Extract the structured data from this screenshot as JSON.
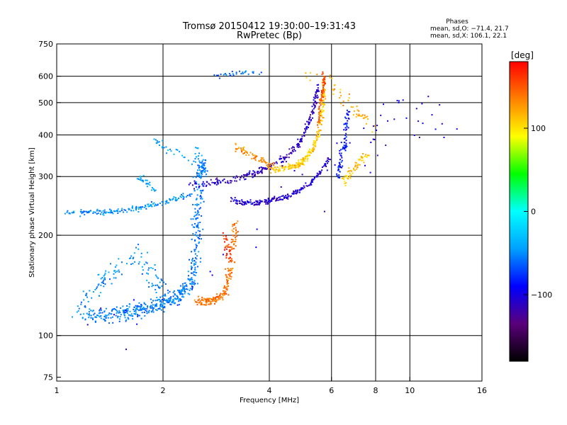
{
  "chart_data": {
    "type": "scatter",
    "title": "Tromsø 20150412 19:30:00–19:31:43",
    "subtitle": "RwPretec (Bp)",
    "annotation": {
      "heading": "Phases",
      "line1": "mean, sd,O: −71.4, 21.7",
      "line2": "mean, sd,X: 106.1, 22.1"
    },
    "xlabel": "Frequency [MHz]",
    "ylabel": "Stationary phase Virtual Height [km]",
    "xscale": "log",
    "yscale": "log",
    "xlim": [
      1,
      16
    ],
    "ylim": [
      73,
      750
    ],
    "xticks": [
      1,
      2,
      4,
      6,
      8,
      10,
      16
    ],
    "xtick_labels": [
      "1",
      "2",
      "4",
      "6",
      "8",
      "10",
      "16"
    ],
    "yticks": [
      75,
      100,
      200,
      300,
      400,
      500,
      600,
      750
    ],
    "ytick_labels": [
      "75",
      "100",
      "200",
      "300",
      "400",
      "500",
      "600",
      "750"
    ],
    "grid": true,
    "colorbar": {
      "label": "[deg]",
      "range": [
        -180,
        180
      ],
      "ticks": [
        100,
        0,
        -100
      ],
      "tick_labels": [
        "100",
        "0",
        "−100"
      ],
      "colors": [
        "#000000",
        "#5a007a",
        "#0000ff",
        "#00a0ff",
        "#00ffff",
        "#00ff00",
        "#ffff00",
        "#ff8000",
        "#ff0000"
      ]
    },
    "series": [
      {
        "points": [
          [
            1.2,
            117
          ],
          [
            1.3,
            116
          ],
          [
            1.4,
            115
          ],
          [
            1.5,
            116
          ],
          [
            1.6,
            117
          ],
          [
            1.7,
            119
          ],
          [
            1.8,
            121
          ],
          [
            1.9,
            123
          ],
          [
            2.0,
            125
          ],
          [
            2.1,
            128
          ],
          [
            2.2,
            131
          ],
          [
            2.3,
            136
          ],
          [
            2.4,
            145
          ],
          [
            2.45,
            160
          ],
          [
            2.5,
            190
          ],
          [
            2.5,
            230
          ],
          [
            2.55,
            270
          ],
          [
            2.6,
            330
          ],
          [
            2.5,
            300
          ]
        ],
        "spread": 0.08,
        "count": 560,
        "phase": -55
      },
      {
        "points": [
          [
            1.15,
            120
          ],
          [
            1.25,
            135
          ],
          [
            1.4,
            150
          ],
          [
            1.55,
            165
          ],
          [
            1.7,
            175
          ],
          [
            1.8,
            160
          ],
          [
            1.9,
            145
          ],
          [
            2.0,
            140
          ]
        ],
        "spread": 0.1,
        "count": 120,
        "phase": -50
      },
      {
        "points": [
          [
            1.05,
            235
          ],
          [
            1.2,
            234
          ],
          [
            1.4,
            235
          ],
          [
            1.6,
            238
          ],
          [
            1.8,
            244
          ],
          [
            2.0,
            250
          ],
          [
            2.2,
            257
          ],
          [
            2.4,
            265
          ]
        ],
        "spread": 0.03,
        "count": 160,
        "phase": -50
      },
      {
        "points": [
          [
            1.7,
            300
          ],
          [
            1.8,
            290
          ],
          [
            1.9,
            270
          ]
        ],
        "spread": 0.03,
        "count": 30,
        "phase": -45
      },
      {
        "points": [
          [
            1.9,
            380
          ],
          [
            2.0,
            370
          ],
          [
            2.4,
            330
          ],
          [
            2.55,
            360
          ]
        ],
        "spread": 0.06,
        "count": 40,
        "phase": -40
      },
      {
        "points": [
          [
            2.5,
            127
          ],
          [
            2.6,
            127
          ],
          [
            2.7,
            127
          ],
          [
            2.8,
            128
          ],
          [
            2.9,
            130
          ],
          [
            3.0,
            135
          ],
          [
            3.05,
            145
          ],
          [
            3.1,
            160
          ],
          [
            3.15,
            180
          ],
          [
            3.2,
            200
          ],
          [
            3.2,
            215
          ]
        ],
        "spread": 0.05,
        "count": 200,
        "phase": 140
      },
      {
        "points": [
          [
            3.0,
            200
          ],
          [
            3.05,
            180
          ],
          [
            3.1,
            170
          ]
        ],
        "spread": 0.05,
        "count": 30,
        "phase": 165
      },
      {
        "points": [
          [
            2.4,
            285
          ],
          [
            2.7,
            285
          ],
          [
            3.0,
            290
          ],
          [
            3.3,
            297
          ],
          [
            3.6,
            305
          ],
          [
            3.9,
            315
          ],
          [
            4.2,
            328
          ],
          [
            4.5,
            345
          ],
          [
            4.8,
            370
          ],
          [
            5.0,
            400
          ],
          [
            5.2,
            440
          ],
          [
            5.4,
            500
          ],
          [
            5.5,
            560
          ]
        ],
        "spread": 0.035,
        "count": 260,
        "phase": -110
      },
      {
        "points": [
          [
            3.1,
            255
          ],
          [
            3.4,
            250
          ],
          [
            3.7,
            250
          ],
          [
            4.0,
            254
          ],
          [
            4.4,
            260
          ],
          [
            4.8,
            270
          ],
          [
            5.2,
            285
          ],
          [
            5.6,
            310
          ],
          [
            5.9,
            340
          ]
        ],
        "spread": 0.03,
        "count": 200,
        "phase": -105
      },
      {
        "points": [
          [
            3.2,
            370
          ],
          [
            3.5,
            350
          ],
          [
            3.8,
            335
          ],
          [
            4.0,
            325
          ],
          [
            4.2,
            320
          ]
        ],
        "spread": 0.04,
        "count": 70,
        "phase": 130
      },
      {
        "points": [
          [
            4.0,
            315
          ],
          [
            4.4,
            318
          ],
          [
            4.8,
            325
          ],
          [
            5.0,
            335
          ],
          [
            5.3,
            360
          ],
          [
            5.5,
            400
          ],
          [
            5.6,
            450
          ],
          [
            5.7,
            520
          ],
          [
            5.7,
            600
          ]
        ],
        "spread": 0.035,
        "count": 240,
        "phase": 110
      },
      {
        "points": [
          [
            5.5,
            430
          ],
          [
            5.6,
            500
          ],
          [
            5.7,
            560
          ],
          [
            5.7,
            620
          ]
        ],
        "spread": 0.03,
        "count": 70,
        "phase": 150
      },
      {
        "points": [
          [
            6.2,
            300
          ],
          [
            6.4,
            330
          ],
          [
            6.5,
            370
          ],
          [
            6.6,
            420
          ],
          [
            6.7,
            480
          ]
        ],
        "spread": 0.05,
        "count": 80,
        "phase": -85
      },
      {
        "points": [
          [
            6.5,
            290
          ],
          [
            6.8,
            310
          ],
          [
            7.2,
            330
          ],
          [
            7.6,
            350
          ]
        ],
        "spread": 0.05,
        "count": 60,
        "phase": 110
      },
      {
        "points": [
          [
            2.8,
            600
          ],
          [
            3.2,
            610
          ],
          [
            3.8,
            620
          ]
        ],
        "spread": 0.03,
        "count": 30,
        "phase": -60
      },
      {
        "points": [
          [
            5.0,
            600
          ],
          [
            6.0,
            580
          ],
          [
            6.5,
            520
          ],
          [
            7.0,
            480
          ],
          [
            7.5,
            450
          ],
          [
            8.0,
            400
          ]
        ],
        "spread": 0.08,
        "count": 50,
        "phase": 120
      },
      {
        "points": [
          [
            1.2,
            110
          ],
          [
            2.0,
            115
          ],
          [
            3.5,
            200
          ],
          [
            8.0,
            420
          ],
          [
            10.0,
            500
          ],
          [
            12.5,
            400
          ]
        ],
        "spread": 0.3,
        "count": 60,
        "phase": -100
      }
    ]
  }
}
